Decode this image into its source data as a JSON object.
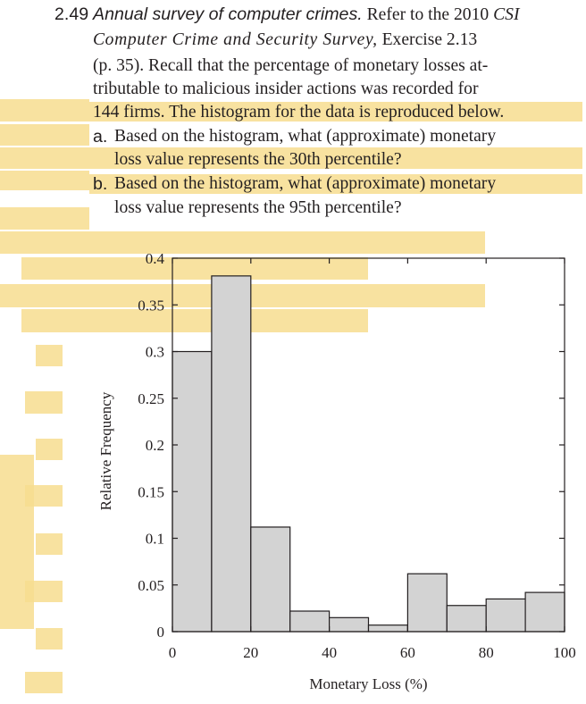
{
  "problem": {
    "number": "2.49",
    "title": "Annual survey of computer crimes.",
    "line1_rest": "Refer to the 2010",
    "survey_a": "CSI",
    "survey_b": "Computer Crime and Security Survey,",
    "line2_rest": "Exercise 2.13",
    "line3": "(p. 35). Recall that the percentage of monetary losses at-",
    "line4": "tributable to malicious insider actions was recorded for",
    "line5": "144 firms. The histogram for the data is reproduced below.",
    "part_a_label": "a.",
    "part_a_line1": "Based on the histogram, what (approximate) monetary",
    "part_a_line2": "loss value represents the 30th percentile?",
    "part_b_label": "b.",
    "part_b_line1": "Based on the histogram, what (approximate) monetary",
    "part_b_line2": "loss value represents the 95th percentile?"
  },
  "colors": {
    "highlight": "#f7dd8f",
    "bar_fill": "#d3d3d3",
    "bar_stroke": "#231f20"
  },
  "chart_data": {
    "type": "bar",
    "title": "",
    "xlabel": "Monetary Loss (%)",
    "ylabel": "Relative Frequency",
    "xlim": [
      0,
      100
    ],
    "ylim": [
      0,
      0.4
    ],
    "xticks": [
      "0",
      "20",
      "40",
      "60",
      "80",
      "100"
    ],
    "yticks": [
      "0",
      "0.05",
      "0.1",
      "0.15",
      "0.2",
      "0.25",
      "0.3",
      "0.35",
      "0.4"
    ],
    "bins": [
      {
        "from": 0,
        "to": 10,
        "value": 0.3
      },
      {
        "from": 10,
        "to": 20,
        "value": 0.381
      },
      {
        "from": 20,
        "to": 30,
        "value": 0.112
      },
      {
        "from": 30,
        "to": 40,
        "value": 0.022
      },
      {
        "from": 40,
        "to": 50,
        "value": 0.015
      },
      {
        "from": 50,
        "to": 60,
        "value": 0.007
      },
      {
        "from": 60,
        "to": 70,
        "value": 0.062
      },
      {
        "from": 70,
        "to": 80,
        "value": 0.028
      },
      {
        "from": 80,
        "to": 90,
        "value": 0.035
      },
      {
        "from": 90,
        "to": 100,
        "value": 0.042
      }
    ],
    "grid": false,
    "legend": "none"
  }
}
